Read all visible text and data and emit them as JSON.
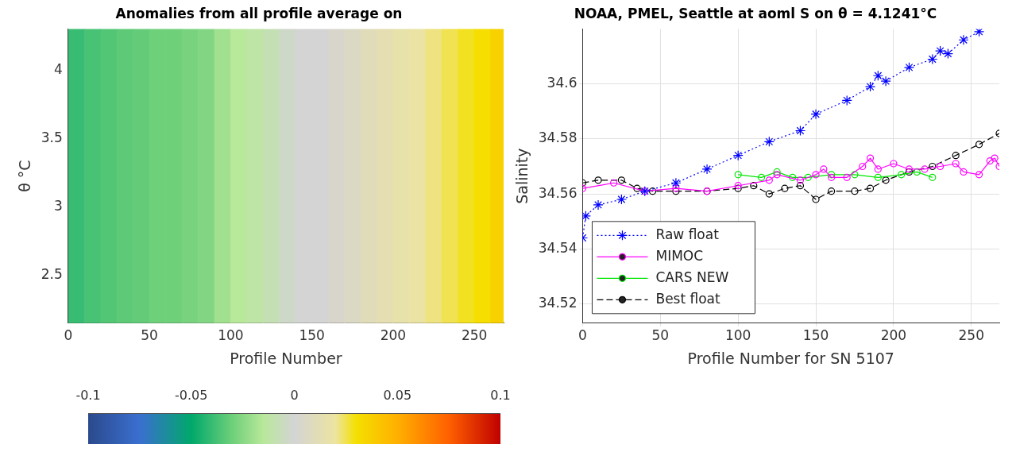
{
  "chart_data": [
    {
      "type": "heatmap",
      "title": "Anomalies from all profile average on",
      "xlabel": "Profile Number",
      "ylabel": "θ °C",
      "x": [
        5,
        15,
        25,
        35,
        45,
        55,
        65,
        75,
        85,
        95,
        105,
        115,
        125,
        135,
        145,
        155,
        165,
        175,
        185,
        195,
        205,
        215,
        225,
        235,
        245,
        255,
        265
      ],
      "cells": [
        [
          -0.04,
          -0.037,
          -0.035,
          -0.033,
          -0.032,
          -0.03,
          -0.03,
          -0.028,
          -0.026,
          -0.02,
          -0.015,
          -0.012,
          -0.008,
          -0.003,
          0,
          0,
          0.003,
          0.006,
          0.01,
          0.013,
          0.016,
          0.019,
          0.022,
          0.025,
          0.028,
          0.031,
          0.036
        ]
      ],
      "xlim": [
        0,
        268
      ],
      "xticks": [
        0,
        50,
        100,
        150,
        200,
        250
      ],
      "ylim": [
        2.15,
        4.3
      ],
      "yticks": [
        2.5,
        3,
        3.5,
        4
      ],
      "clim": [
        -0.1,
        0.1
      ],
      "cticks": [
        -0.1,
        -0.05,
        0,
        0.05,
        0.1
      ]
    },
    {
      "type": "line",
      "title": "NOAA, PMEL, Seattle at aoml S on θ = 4.1241°C",
      "xlabel": "Profile Number for SN 5107",
      "ylabel": "Salinity",
      "xlim": [
        0,
        268
      ],
      "xticks": [
        0,
        50,
        100,
        150,
        200,
        250
      ],
      "ylim": [
        34.513,
        34.62
      ],
      "yticks": [
        34.52,
        34.54,
        34.56,
        34.58,
        34.6
      ],
      "grid": true,
      "legend": "bottom left",
      "series": [
        {
          "name": "Raw float",
          "color": "#0000ff",
          "marker": "cross",
          "line_style": "dotted",
          "x": [
            0,
            2,
            10,
            25,
            40,
            60,
            80,
            100,
            120,
            140,
            150,
            170,
            185,
            190,
            195,
            210,
            225,
            230,
            235,
            245,
            255
          ],
          "values": [
            34.544,
            34.552,
            34.556,
            34.558,
            34.561,
            34.564,
            34.569,
            34.574,
            34.579,
            34.583,
            34.589,
            34.594,
            34.599,
            34.603,
            34.601,
            34.606,
            34.609,
            34.612,
            34.611,
            34.616,
            34.619
          ]
        },
        {
          "name": "MIMOC",
          "color": "#ff00ff",
          "marker": "circle",
          "line_style": "solid",
          "x": [
            0,
            20,
            40,
            60,
            80,
            100,
            120,
            125,
            140,
            150,
            155,
            160,
            170,
            180,
            185,
            190,
            200,
            210,
            220,
            230,
            240,
            245,
            255,
            262,
            265,
            268
          ],
          "values": [
            34.562,
            34.564,
            34.561,
            34.562,
            34.561,
            34.563,
            34.565,
            34.567,
            34.565,
            34.567,
            34.569,
            34.566,
            34.566,
            34.57,
            34.573,
            34.569,
            34.571,
            34.569,
            34.569,
            34.57,
            34.571,
            34.568,
            34.567,
            34.572,
            34.573,
            34.57
          ]
        },
        {
          "name": "CARS NEW",
          "color": "#00e600",
          "marker": "circle",
          "line_style": "solid",
          "x": [
            100,
            115,
            125,
            135,
            145,
            160,
            175,
            190,
            205,
            215,
            225
          ],
          "values": [
            34.567,
            34.566,
            34.568,
            34.566,
            34.566,
            34.567,
            34.567,
            34.566,
            34.567,
            34.568,
            34.566
          ]
        },
        {
          "name": "Best float",
          "color": "#000000",
          "marker": "circle",
          "line_style": "dashed",
          "x": [
            0,
            10,
            25,
            35,
            45,
            60,
            80,
            100,
            110,
            120,
            130,
            140,
            150,
            160,
            175,
            185,
            195,
            210,
            225,
            240,
            255,
            268
          ],
          "values": [
            34.564,
            34.565,
            34.565,
            34.562,
            34.561,
            34.561,
            34.561,
            34.562,
            34.563,
            34.56,
            34.562,
            34.563,
            34.558,
            34.561,
            34.561,
            34.562,
            34.565,
            34.568,
            34.57,
            34.574,
            34.578,
            34.582
          ]
        }
      ]
    }
  ]
}
